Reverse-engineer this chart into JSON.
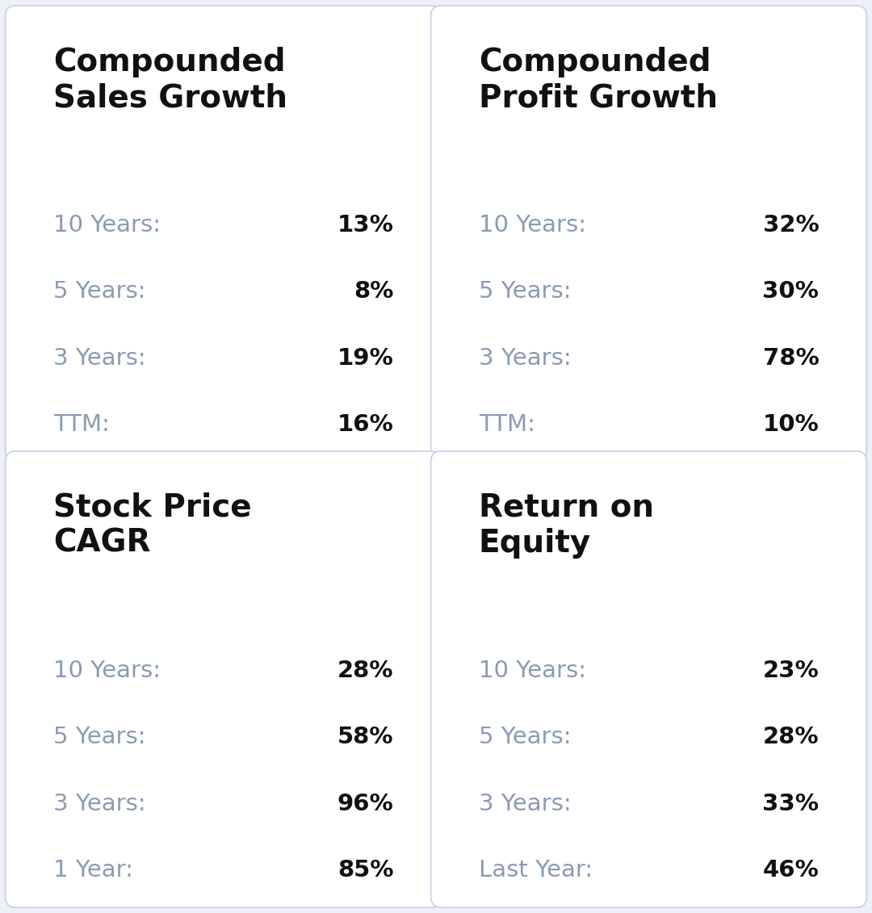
{
  "panels": [
    {
      "title": "Compounded\nSales Growth",
      "rows": [
        {
          "label": "10 Years:",
          "value": "13%"
        },
        {
          "label": "5 Years:",
          "value": "8%"
        },
        {
          "label": "3 Years:",
          "value": "19%"
        },
        {
          "label": "TTM:",
          "value": "16%"
        }
      ]
    },
    {
      "title": "Compounded\nProfit Growth",
      "rows": [
        {
          "label": "10 Years:",
          "value": "32%"
        },
        {
          "label": "5 Years:",
          "value": "30%"
        },
        {
          "label": "3 Years:",
          "value": "78%"
        },
        {
          "label": "TTM:",
          "value": "10%"
        }
      ]
    },
    {
      "title": "Stock Price\nCAGR",
      "rows": [
        {
          "label": "10 Years:",
          "value": "28%"
        },
        {
          "label": "5 Years:",
          "value": "58%"
        },
        {
          "label": "3 Years:",
          "value": "96%"
        },
        {
          "label": "1 Year:",
          "value": "85%"
        }
      ]
    },
    {
      "title": "Return on\nEquity",
      "rows": [
        {
          "label": "10 Years:",
          "value": "23%"
        },
        {
          "label": "5 Years:",
          "value": "28%"
        },
        {
          "label": "3 Years:",
          "value": "33%"
        },
        {
          "label": "Last Year:",
          "value": "46%"
        }
      ]
    }
  ],
  "bg_color": "#eef0f7",
  "card_color": "#ffffff",
  "card_border_color": "#c8cfe8",
  "title_color": "#111111",
  "label_color": "#8a9bb5",
  "value_color": "#111111",
  "title_fontsize": 28,
  "label_fontsize": 21,
  "value_fontsize": 21,
  "card_linewidth": 1.2
}
